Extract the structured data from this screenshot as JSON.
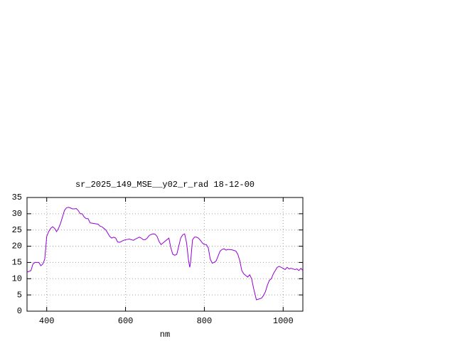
{
  "chart_data": {
    "type": "line",
    "title": "sr_2025_149_MSE__y02_r_rad 18-12-00",
    "x_label": "nm",
    "xlim": [
      350,
      1050
    ],
    "xticks": [
      400,
      600,
      800,
      1000
    ],
    "ylim": [
      0,
      35
    ],
    "yticks": [
      0,
      5,
      10,
      15,
      20,
      25,
      30,
      35
    ],
    "grid": true,
    "x": [
      350,
      360,
      365,
      370,
      380,
      385,
      390,
      395,
      400,
      405,
      410,
      415,
      420,
      425,
      430,
      435,
      440,
      445,
      450,
      455,
      460,
      465,
      470,
      475,
      480,
      485,
      490,
      495,
      500,
      505,
      510,
      520,
      530,
      535,
      540,
      545,
      550,
      555,
      560,
      565,
      570,
      575,
      580,
      585,
      590,
      595,
      600,
      610,
      615,
      620,
      625,
      630,
      635,
      640,
      645,
      650,
      655,
      660,
      665,
      670,
      675,
      680,
      685,
      690,
      695,
      700,
      705,
      710,
      715,
      720,
      725,
      730,
      735,
      740,
      745,
      750,
      755,
      760,
      763,
      765,
      770,
      775,
      780,
      785,
      790,
      795,
      800,
      805,
      810,
      815,
      820,
      825,
      830,
      835,
      840,
      845,
      850,
      855,
      860,
      870,
      875,
      880,
      885,
      890,
      895,
      900,
      905,
      910,
      915,
      920,
      925,
      930,
      932,
      940,
      945,
      950,
      955,
      960,
      965,
      970,
      975,
      980,
      985,
      990,
      995,
      1000,
      1005,
      1010,
      1015,
      1020,
      1025,
      1030,
      1035,
      1040,
      1045,
      1050
    ],
    "series": [
      {
        "color": "#9400d3",
        "values": [
          12,
          12.5,
          14.5,
          15,
          15,
          14,
          14.5,
          16,
          23,
          24.5,
          25.5,
          26,
          25.5,
          24.5,
          25.5,
          27,
          29,
          31,
          31.8,
          32,
          31.8,
          31.5,
          31.5,
          31.6,
          31,
          30,
          30,
          29,
          28.5,
          28.5,
          27.2,
          27,
          26.8,
          26.2,
          26,
          25.5,
          25,
          24,
          23,
          22.5,
          22.8,
          22.5,
          21.3,
          21.2,
          21.5,
          21.8,
          22,
          22.2,
          22,
          21.8,
          22.2,
          22.5,
          22.8,
          22.5,
          22,
          22,
          22.5,
          23.3,
          23.6,
          23.8,
          23.7,
          23,
          21.5,
          20.5,
          21,
          21.5,
          22,
          22.5,
          19.5,
          17.5,
          17.2,
          17.5,
          20,
          22.5,
          23.5,
          23.8,
          21,
          15.5,
          13.5,
          15,
          22,
          22.8,
          22.8,
          22.5,
          21.8,
          21,
          20.5,
          20.5,
          19.5,
          16,
          14.8,
          15,
          15.5,
          17,
          18.5,
          19,
          19.2,
          18.8,
          19,
          18.9,
          18.7,
          18.5,
          17.5,
          15.5,
          12.5,
          11.5,
          11,
          10.5,
          11.2,
          10,
          7,
          4.5,
          3.5,
          3.8,
          4,
          4.8,
          6,
          8,
          9.5,
          10,
          11.5,
          12.5,
          13.5,
          13.8,
          13.5,
          13.2,
          12.8,
          13.5,
          13,
          13.2,
          13,
          12.8,
          13,
          12.5,
          13.2,
          12.5
        ]
      }
    ]
  }
}
